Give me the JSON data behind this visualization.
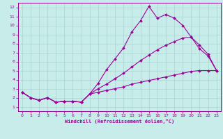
{
  "xlabel": "Windchill (Refroidissement éolien,°C)",
  "bg_color": "#c8ecea",
  "grid_color": "#a8d4d0",
  "line_color": "#990099",
  "xlim_min": -0.5,
  "xlim_max": 23.5,
  "ylim_min": 0.5,
  "ylim_max": 12.5,
  "xticks": [
    0,
    1,
    2,
    3,
    4,
    5,
    6,
    7,
    8,
    9,
    10,
    11,
    12,
    13,
    14,
    15,
    16,
    17,
    18,
    19,
    20,
    21,
    22,
    23
  ],
  "yticks": [
    1,
    2,
    3,
    4,
    5,
    6,
    7,
    8,
    9,
    10,
    11,
    12
  ],
  "line1_x": [
    0,
    1,
    2,
    3,
    4,
    5,
    6,
    7,
    8,
    9,
    10,
    11,
    12,
    13,
    14,
    15,
    16,
    17,
    18,
    19,
    20,
    21,
    22,
    23
  ],
  "line1_y": [
    2.6,
    2.0,
    1.7,
    2.0,
    1.5,
    1.6,
    1.6,
    1.5,
    2.4,
    3.6,
    5.1,
    6.3,
    7.5,
    9.3,
    10.5,
    12.1,
    10.8,
    11.2,
    10.8,
    10.0,
    8.7,
    7.4,
    6.6,
    5.0
  ],
  "line2_x": [
    0,
    1,
    2,
    3,
    4,
    5,
    6,
    7,
    8,
    9,
    10,
    11,
    12,
    13,
    14,
    15,
    16,
    17,
    18,
    19,
    20,
    21,
    22,
    23
  ],
  "line2_y": [
    2.6,
    2.0,
    1.7,
    2.0,
    1.5,
    1.6,
    1.6,
    1.5,
    2.4,
    3.0,
    3.5,
    4.1,
    4.7,
    5.4,
    6.1,
    6.7,
    7.3,
    7.8,
    8.2,
    8.6,
    8.7,
    7.8,
    6.8,
    5.0
  ],
  "line3_x": [
    0,
    1,
    2,
    3,
    4,
    5,
    6,
    7,
    8,
    9,
    10,
    11,
    12,
    13,
    14,
    15,
    16,
    17,
    18,
    19,
    20,
    21,
    22,
    23
  ],
  "line3_y": [
    2.6,
    2.0,
    1.7,
    2.0,
    1.5,
    1.6,
    1.6,
    1.5,
    2.4,
    2.6,
    2.8,
    3.0,
    3.2,
    3.5,
    3.7,
    3.9,
    4.1,
    4.3,
    4.5,
    4.7,
    4.9,
    5.0,
    5.0,
    5.0
  ]
}
